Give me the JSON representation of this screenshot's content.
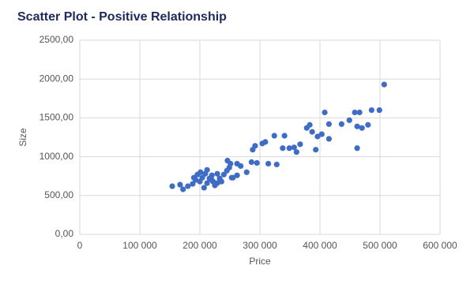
{
  "chart_data": {
    "type": "scatter",
    "title": "Scatter Plot - Positive Relationship",
    "x_label": "Price",
    "y_label": "Size",
    "color": "#3f6cc4",
    "grid": true,
    "xlim": [
      0,
      600000
    ],
    "ylim": [
      0,
      2500
    ],
    "xticks": [
      0,
      {
        "value": 100000,
        "label": "100 000"
      },
      {
        "value": 200000,
        "label": "200 000"
      },
      {
        "value": 300000,
        "label": "300 000"
      },
      {
        "value": 400000,
        "label": "400 000"
      },
      {
        "value": 500000,
        "label": "500 000"
      },
      {
        "value": 600000,
        "label": "600 000"
      }
    ],
    "yticks": [
      {
        "value": 0,
        "label": "0,00"
      },
      {
        "value": 500,
        "label": "500,00"
      },
      {
        "value": 1000,
        "label": "1000,00"
      },
      {
        "value": 1500,
        "label": "1500,00"
      },
      {
        "value": 2000,
        "label": "2000,00"
      },
      {
        "value": 2500,
        "label": "2500,00"
      }
    ],
    "x": [
      154000,
      167000,
      172000,
      180000,
      188000,
      193000,
      196000,
      200000,
      204000,
      207000,
      209000,
      212000,
      216000,
      220000,
      222000,
      225000,
      229000,
      233000,
      236000,
      240000,
      245000,
      249000,
      246000,
      251000,
      255000,
      262000,
      268000,
      278000,
      286000,
      288000,
      292000,
      295000,
      304000,
      309000,
      314000,
      324000,
      328000,
      338000,
      341000,
      349000,
      357000,
      361000,
      367000,
      378000,
      383000,
      387000,
      393000,
      396000,
      403000,
      408000,
      415000,
      415000,
      436000,
      449000,
      458000,
      462000,
      466000,
      470000,
      462000,
      480000,
      486000,
      499000,
      507000,
      190000,
      201000,
      212000,
      220000,
      229000,
      262000,
      253000
    ],
    "values": [
      620,
      640,
      580,
      620,
      650,
      700,
      770,
      680,
      730,
      600,
      780,
      660,
      720,
      760,
      680,
      630,
      780,
      720,
      680,
      770,
      820,
      860,
      950,
      910,
      730,
      910,
      880,
      800,
      930,
      1090,
      1140,
      920,
      1170,
      1190,
      910,
      1270,
      900,
      1110,
      1270,
      1110,
      1120,
      1060,
      1160,
      1370,
      1410,
      1320,
      1090,
      1260,
      1290,
      1570,
      1230,
      1420,
      1420,
      1470,
      1570,
      1390,
      1570,
      1370,
      1110,
      1410,
      1600,
      1600,
      1930,
      730,
      800,
      830,
      700,
      660,
      760,
      730
    ]
  }
}
